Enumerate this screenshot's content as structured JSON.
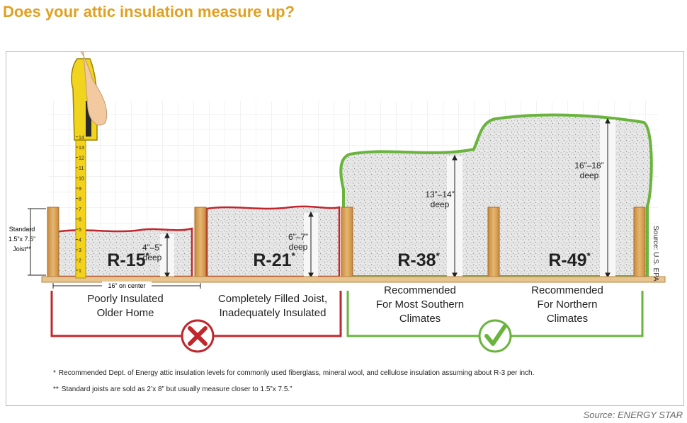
{
  "title": "Does your attic insulation measure up?",
  "source_bottom": "Source: ENERGY STAR",
  "side_source": "Source: U.S. EPA",
  "joist_note": {
    "line1": "Standard",
    "line2": "1.5”x 7.5”",
    "line3": "Joist**"
  },
  "on_center": "16” on center",
  "levels": [
    {
      "r": "R-15",
      "star": "*",
      "depth1": "4”–5”",
      "depth2": "deep"
    },
    {
      "r": "R-21",
      "star": "*",
      "depth1": "6”–7”",
      "depth2": "deep"
    },
    {
      "r": "R-38",
      "star": "*",
      "depth1": "13”–14”",
      "depth2": "deep"
    },
    {
      "r": "R-49",
      "star": "*",
      "depth1": "16”–18”",
      "depth2": "deep"
    }
  ],
  "captions": [
    {
      "line1": "Poorly Insulated",
      "line2": "Older Home"
    },
    {
      "line1": "Completely Filled Joist,",
      "line2": "Inadequately Insulated"
    },
    {
      "line1": "Recommended",
      "line2": "For Most Southern",
      "line3": "Climates"
    },
    {
      "line1": "Recommended",
      "line2": "For Northern",
      "line3": "Climates"
    }
  ],
  "footnotes": {
    "f1_mark": "*",
    "f1": "Recommended Dept. of Energy attic insulation levels for commonly used fiberglass, mineral wool, and cellulose insulation assuming about R-3 per inch.",
    "f2_mark": "**",
    "f2": "Standard joists are sold as 2’x 8” but usually measure closer to 1.5”x 7.5.”"
  },
  "tape_numbers": [
    "1",
    "2",
    "3",
    "4",
    "5",
    "6",
    "7",
    "8",
    "9",
    "10",
    "11",
    "12",
    "13",
    "14"
  ],
  "colors": {
    "title": "#e0a020",
    "bad": "#c0272d",
    "good": "#6ab43e",
    "wood": "#d9a35a"
  }
}
